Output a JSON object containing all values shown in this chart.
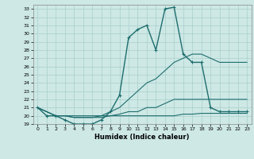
{
  "xlabel": "Humidex (Indice chaleur)",
  "xlim": [
    -0.5,
    23.5
  ],
  "ylim": [
    19,
    33.5
  ],
  "yticks": [
    19,
    20,
    21,
    22,
    23,
    24,
    25,
    26,
    27,
    28,
    29,
    30,
    31,
    32,
    33
  ],
  "xticks": [
    0,
    1,
    2,
    3,
    4,
    5,
    6,
    7,
    8,
    9,
    10,
    11,
    12,
    13,
    14,
    15,
    16,
    17,
    18,
    19,
    20,
    21,
    22,
    23
  ],
  "background_color": "#cde8e5",
  "grid_color": "#aacfcc",
  "line_color": "#1e6e6e",
  "series": [
    {
      "x": [
        0,
        1,
        2,
        3,
        4,
        5,
        6,
        7,
        8,
        9,
        10,
        11,
        12,
        13,
        14,
        15,
        16,
        17,
        18,
        19,
        20,
        21,
        22,
        23
      ],
      "y": [
        21,
        20,
        20,
        19.5,
        19,
        19,
        19,
        19.5,
        20.5,
        22.5,
        29.5,
        30.5,
        31,
        28,
        33,
        33.2,
        27.5,
        26.5,
        26.5,
        21,
        20.5,
        20.5,
        20.5,
        20.5
      ],
      "marker": "+",
      "lw": 1.0
    },
    {
      "x": [
        0,
        1,
        2,
        3,
        4,
        5,
        6,
        7,
        8,
        9,
        10,
        11,
        12,
        13,
        14,
        15,
        16,
        17,
        18,
        19,
        20,
        21,
        22,
        23
      ],
      "y": [
        21,
        20.5,
        20,
        20,
        20,
        20,
        20,
        20,
        20.5,
        21,
        22,
        23,
        24,
        24.5,
        25.5,
        26.5,
        27,
        27.5,
        27.5,
        27,
        26.5,
        26.5,
        26.5,
        26.5
      ],
      "marker": null,
      "lw": 0.8
    },
    {
      "x": [
        0,
        1,
        2,
        3,
        4,
        5,
        6,
        7,
        8,
        9,
        10,
        11,
        12,
        13,
        14,
        15,
        16,
        17,
        18,
        19,
        20,
        21,
        22,
        23
      ],
      "y": [
        21,
        20.5,
        20,
        20,
        19.8,
        19.8,
        19.8,
        20,
        20,
        20.2,
        20.5,
        20.5,
        21,
        21,
        21.5,
        22,
        22,
        22,
        22,
        22,
        22,
        22,
        22,
        22
      ],
      "marker": null,
      "lw": 0.8
    },
    {
      "x": [
        0,
        1,
        2,
        3,
        4,
        5,
        6,
        7,
        8,
        9,
        10,
        11,
        12,
        13,
        14,
        15,
        16,
        17,
        18,
        19,
        20,
        21,
        22,
        23
      ],
      "y": [
        21,
        20.5,
        20,
        20,
        19.8,
        19.8,
        19.8,
        19.8,
        20,
        20,
        20,
        20,
        20,
        20,
        20,
        20,
        20.2,
        20.2,
        20.3,
        20.3,
        20.3,
        20.3,
        20.3,
        20.3
      ],
      "marker": null,
      "lw": 0.8
    }
  ]
}
